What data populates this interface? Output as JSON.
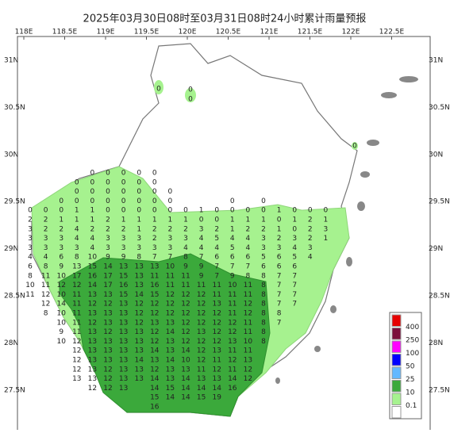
{
  "title": "2025年03月30日08时至03月31日08时24小时累计雨量预报",
  "lon_labels": [
    "118E",
    "118.5E",
    "119E",
    "119.5E",
    "120E",
    "120.5E",
    "121E",
    "121.5E",
    "122E",
    "122.5E"
  ],
  "lat_labels": [
    "31N",
    "30.5N",
    "30N",
    "29.5N",
    "29N",
    "28.5N",
    "28N",
    "27.5N"
  ],
  "spot_values": [
    0,
    0,
    0,
    0
  ],
  "grid": {
    "rows": [
      [
        null,
        null,
        null,
        null,
        0,
        0,
        0,
        0,
        0,
        null,
        null,
        null,
        null,
        null,
        null,
        null,
        null,
        null,
        null,
        null
      ],
      [
        null,
        null,
        null,
        0,
        0,
        0,
        0,
        0,
        0,
        null,
        null,
        null,
        null,
        null,
        null,
        null,
        null,
        null,
        null,
        null
      ],
      [
        null,
        null,
        null,
        0,
        0,
        0,
        0,
        0,
        0,
        0,
        null,
        null,
        null,
        null,
        null,
        null,
        null,
        null,
        null,
        null
      ],
      [
        null,
        null,
        0,
        0,
        0,
        0,
        0,
        0,
        0,
        0,
        null,
        null,
        null,
        0,
        null,
        0,
        null,
        null,
        null,
        null
      ],
      [
        0,
        0,
        0,
        1,
        1,
        0,
        0,
        0,
        0,
        0,
        0,
        1,
        0,
        0,
        0,
        0,
        1,
        0,
        0,
        0
      ],
      [
        2,
        2,
        1,
        1,
        1,
        2,
        1,
        1,
        1,
        1,
        1,
        0,
        0,
        1,
        1,
        1,
        0,
        1,
        2,
        1
      ],
      [
        3,
        2,
        2,
        4,
        2,
        2,
        2,
        1,
        2,
        2,
        2,
        3,
        2,
        1,
        2,
        2,
        1,
        0,
        2,
        3
      ],
      [
        3,
        3,
        3,
        4,
        4,
        3,
        3,
        3,
        2,
        3,
        3,
        4,
        5,
        4,
        4,
        3,
        2,
        3,
        2,
        1
      ],
      [
        3,
        3,
        3,
        3,
        4,
        3,
        3,
        3,
        3,
        3,
        4,
        4,
        4,
        5,
        4,
        3,
        3,
        4,
        3,
        null
      ],
      [
        4,
        4,
        6,
        8,
        10,
        9,
        9,
        8,
        7,
        7,
        8,
        7,
        6,
        6,
        6,
        5,
        6,
        5,
        4,
        null
      ],
      [
        6,
        8,
        9,
        13,
        15,
        14,
        13,
        13,
        13,
        10,
        9,
        9,
        7,
        7,
        7,
        6,
        6,
        6,
        null,
        null
      ],
      [
        8,
        11,
        10,
        17,
        16,
        17,
        15,
        13,
        11,
        11,
        11,
        9,
        7,
        9,
        8,
        8,
        7,
        7,
        null,
        null
      ],
      [
        10,
        11,
        12,
        12,
        14,
        17,
        16,
        13,
        16,
        11,
        11,
        11,
        11,
        10,
        11,
        8,
        7,
        7,
        null,
        null
      ],
      [
        11,
        12,
        10,
        11,
        13,
        13,
        15,
        14,
        15,
        12,
        12,
        12,
        11,
        11,
        11,
        8,
        7,
        7,
        null,
        null
      ],
      [
        null,
        12,
        14,
        11,
        12,
        12,
        13,
        12,
        12,
        12,
        12,
        12,
        13,
        11,
        12,
        8,
        7,
        7,
        null,
        null
      ],
      [
        null,
        8,
        10,
        11,
        13,
        13,
        13,
        12,
        12,
        12,
        12,
        12,
        12,
        11,
        12,
        8,
        8,
        null,
        null,
        null
      ],
      [
        null,
        null,
        10,
        11,
        12,
        13,
        13,
        12,
        13,
        13,
        12,
        12,
        12,
        12,
        11,
        8,
        7,
        null,
        null,
        null
      ],
      [
        null,
        null,
        9,
        11,
        13,
        12,
        13,
        13,
        12,
        14,
        12,
        13,
        12,
        12,
        11,
        8,
        null,
        null,
        null,
        null
      ],
      [
        null,
        null,
        10,
        12,
        13,
        13,
        13,
        13,
        12,
        13,
        12,
        12,
        12,
        13,
        10,
        8,
        null,
        null,
        null,
        null
      ],
      [
        null,
        null,
        null,
        12,
        13,
        13,
        13,
        13,
        14,
        13,
        14,
        12,
        13,
        11,
        11,
        null,
        null,
        null,
        null,
        null
      ],
      [
        null,
        null,
        null,
        12,
        13,
        13,
        13,
        14,
        13,
        14,
        10,
        12,
        11,
        12,
        13,
        null,
        null,
        null,
        null,
        null
      ],
      [
        null,
        null,
        null,
        12,
        13,
        12,
        13,
        13,
        12,
        13,
        13,
        11,
        12,
        11,
        12,
        null,
        null,
        null,
        null,
        null
      ],
      [
        null,
        null,
        null,
        13,
        13,
        12,
        13,
        13,
        14,
        13,
        14,
        13,
        13,
        14,
        12,
        null,
        null,
        null,
        null,
        null
      ],
      [
        null,
        null,
        null,
        null,
        12,
        12,
        13,
        null,
        14,
        15,
        14,
        14,
        14,
        16,
        null,
        null,
        null,
        null,
        null,
        null
      ],
      [
        null,
        null,
        null,
        null,
        null,
        null,
        null,
        null,
        15,
        14,
        14,
        15,
        19,
        null,
        null,
        null,
        null,
        null,
        null,
        null
      ],
      [
        null,
        null,
        null,
        null,
        null,
        null,
        null,
        null,
        16,
        null,
        null,
        null,
        null,
        null,
        null,
        null,
        null,
        null,
        null,
        null
      ]
    ]
  },
  "legend": {
    "labels": [
      400,
      250,
      100,
      50,
      25,
      10,
      0.1
    ],
    "colors": [
      "#e60000",
      "#7d0f3c",
      "#ff00ff",
      "#0000ff",
      "#63b8ff",
      "#3ba93b",
      "#a6f28f",
      "#ffffff"
    ]
  }
}
